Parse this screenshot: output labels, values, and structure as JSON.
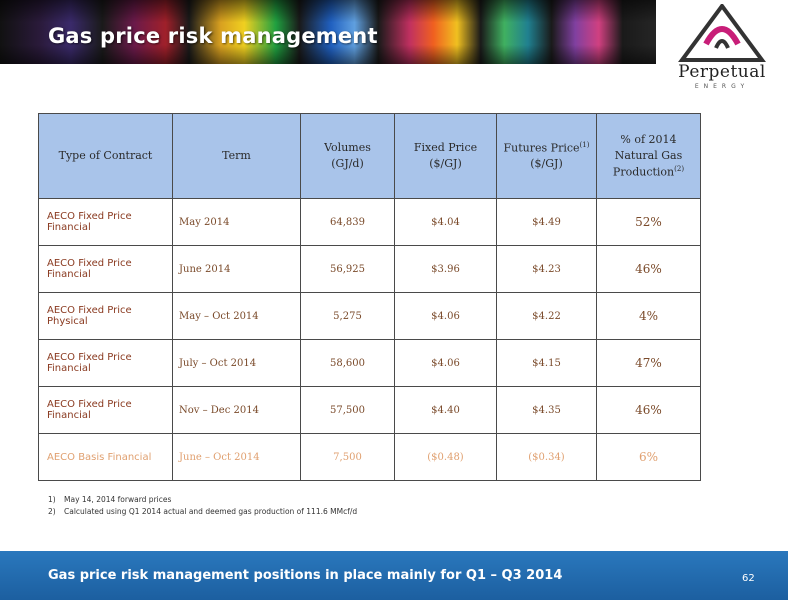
{
  "header": {
    "title": "Gas price risk management"
  },
  "logo": {
    "name": "Perpetual",
    "sub": "ENERGY"
  },
  "table": {
    "headers": [
      {
        "label": "Type of Contract"
      },
      {
        "label": "Term"
      },
      {
        "line1": "Volumes",
        "line2": "(GJ/d)"
      },
      {
        "line1": "Fixed Price",
        "line2": "($/GJ)"
      },
      {
        "line1": "Futures Price",
        "sup": "(1)",
        "line2": "($/GJ)"
      },
      {
        "line1": "% of 2014",
        "line2": "Natural Gas",
        "line3": "Production",
        "sup": "(2)"
      }
    ],
    "rows": [
      {
        "type": "AECO Fixed Price Financial",
        "term": "May 2014",
        "volumes": "64,839",
        "fixed": "$4.04",
        "futures": "$4.49",
        "pct": "52%"
      },
      {
        "type": "AECO Fixed Price Financial",
        "term": "June 2014",
        "volumes": "56,925",
        "fixed": "$3.96",
        "futures": "$4.23",
        "pct": "46%"
      },
      {
        "type": "AECO Fixed Price Physical",
        "term": "May – Oct 2014",
        "volumes": "5,275",
        "fixed": "$4.06",
        "futures": "$4.22",
        "pct": "4%"
      },
      {
        "type": "AECO Fixed Price Financial",
        "term": "July – Oct 2014",
        "volumes": "58,600",
        "fixed": "$4.06",
        "futures": "$4.15",
        "pct": "47%"
      },
      {
        "type": "AECO Fixed Price Financial",
        "term": "Nov – Dec 2014",
        "volumes": "57,500",
        "fixed": "$4.40",
        "futures": "$4.35",
        "pct": "46%"
      },
      {
        "type": "AECO Basis Financial",
        "term": "June – Oct 2014",
        "volumes": "7,500",
        "fixed": "($0.48)",
        "futures": "($0.34)",
        "pct": "6%"
      }
    ]
  },
  "notes": [
    {
      "num": "1)",
      "text": "May 14, 2014 forward prices"
    },
    {
      "num": "2)",
      "text": "Calculated using Q1 2014 actual and deemed gas production of 111.6 MMcf/d"
    }
  ],
  "footer": {
    "text": "Gas price risk management positions in place mainly for Q1 – Q3 2014",
    "page": "62"
  },
  "colors": {
    "header_fill": "#a9c4ea",
    "footer_fill": "#1c5fa0",
    "row_text": "#8a3a20",
    "basis_text": "#e0a070"
  }
}
